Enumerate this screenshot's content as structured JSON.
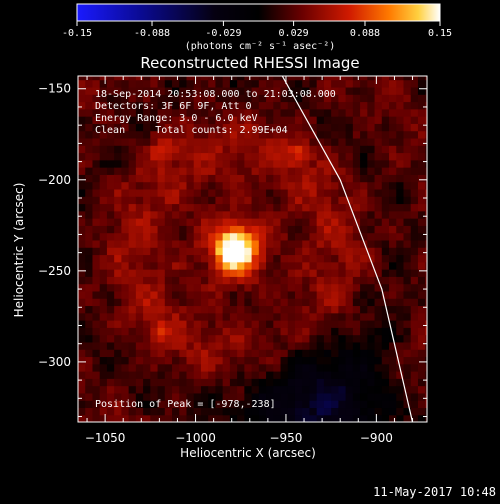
{
  "colorbar": {
    "ticks": [
      "-0.15",
      "-0.088",
      "-0.029",
      "0.029",
      "0.088",
      "0.15"
    ],
    "unit_label": "(photons cm⁻² s⁻¹ asec⁻²)"
  },
  "chart_data": {
    "type": "heatmap",
    "title": "Reconstructed RHESSI Image",
    "xlabel": "Heliocentric X (arcsec)",
    "ylabel": "Heliocentric Y (arcsec)",
    "xlim": [
      -1065,
      -872
    ],
    "ylim": [
      -333,
      -143
    ],
    "x_ticks": [
      "-1050",
      "-1000",
      "-950",
      "-900"
    ],
    "y_ticks": [
      "-150",
      "-200",
      "-250",
      "-300"
    ],
    "color_range": [
      -0.15,
      0.15
    ],
    "colormap": "blue-black-red-yellow-white",
    "peak": {
      "x": -978,
      "y": -238,
      "value": 0.15
    },
    "secondary_sources": [
      {
        "x": -1018,
        "y": -182,
        "value": 0.07
      },
      {
        "x": -944,
        "y": -185,
        "value": 0.07
      },
      {
        "x": -1021,
        "y": -284,
        "value": 0.06
      }
    ],
    "limb_curve": [
      [
        -952,
        -143
      ],
      [
        -920,
        -200
      ],
      [
        -897,
        -260
      ],
      [
        -880,
        -333
      ]
    ],
    "annotations": [
      "18-Sep-2014 20:53:08.000 to 21:03:08.000",
      "Detectors: 3F 6F 9F, Att 0",
      "Energy Range: 3.0 - 6.0 keV",
      "Clean     Total counts: 2.99E+04",
      "Position of Peak = [-978,-238]"
    ]
  },
  "footer": {
    "date": "11-May-2017 10:48"
  }
}
